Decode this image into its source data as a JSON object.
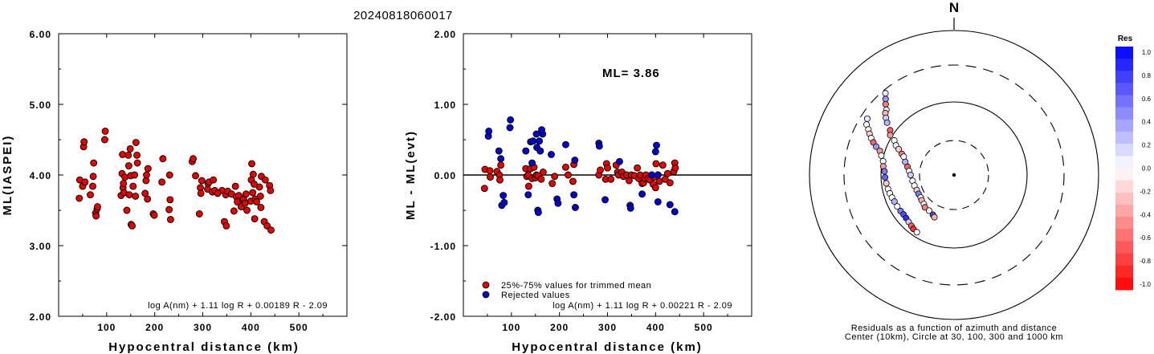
{
  "title": "20240818060017",
  "chart_data": [
    {
      "type": "scatter",
      "ylabel": "ML(IASPEI)",
      "xlabel": "Hypocentral distance (km)",
      "xlim": [
        0,
        600
      ],
      "ylim": [
        2.0,
        6.0
      ],
      "xticks": [
        "100",
        "200",
        "300",
        "400",
        "500"
      ],
      "yticks": [
        "2.00",
        "3.00",
        "4.00",
        "5.00",
        "6.00"
      ],
      "formula": "log A(nm) + 1.11 log R + 0.00189 R - 2.09",
      "color": "#e00000",
      "points": [
        [
          43,
          3.67
        ],
        [
          44,
          3.93
        ],
        [
          50,
          3.84
        ],
        [
          52,
          4.4
        ],
        [
          53,
          4.47
        ],
        [
          55,
          3.9
        ],
        [
          66,
          3.72
        ],
        [
          71,
          3.84
        ],
        [
          72,
          3.98
        ],
        [
          73,
          4.17
        ],
        [
          77,
          3.46
        ],
        [
          78,
          3.42
        ],
        [
          80,
          3.52
        ],
        [
          81,
          3.55
        ],
        [
          96,
          4.5
        ],
        [
          97,
          4.62
        ],
        [
          130,
          3.71
        ],
        [
          132,
          4.02
        ],
        [
          133,
          4.29
        ],
        [
          134,
          3.82
        ],
        [
          135,
          3.88
        ],
        [
          136,
          3.75
        ],
        [
          138,
          3.97
        ],
        [
          142,
          3.5
        ],
        [
          145,
          4.28
        ],
        [
          146,
          4.13
        ],
        [
          147,
          3.72
        ],
        [
          149,
          4.37
        ],
        [
          150,
          3.99
        ],
        [
          151,
          3.3
        ],
        [
          153,
          3.28
        ],
        [
          155,
          3.84
        ],
        [
          158,
          4.0
        ],
        [
          160,
          3.7
        ],
        [
          161,
          4.46
        ],
        [
          163,
          4.28
        ],
        [
          164,
          4.17
        ],
        [
          180,
          3.74
        ],
        [
          182,
          3.92
        ],
        [
          183,
          4.0
        ],
        [
          185,
          3.66
        ],
        [
          186,
          4.09
        ],
        [
          197,
          3.45
        ],
        [
          199,
          3.43
        ],
        [
          215,
          3.9
        ],
        [
          217,
          4.23
        ],
        [
          230,
          3.51
        ],
        [
          231,
          4.0
        ],
        [
          232,
          3.65
        ],
        [
          233,
          3.37
        ],
        [
          278,
          4.19
        ],
        [
          280,
          4.23
        ],
        [
          285,
          3.99
        ],
        [
          293,
          3.45
        ],
        [
          295,
          3.82
        ],
        [
          296,
          3.74
        ],
        [
          298,
          3.92
        ],
        [
          310,
          3.8
        ],
        [
          311,
          3.88
        ],
        [
          313,
          3.9
        ],
        [
          320,
          3.76
        ],
        [
          322,
          3.93
        ],
        [
          325,
          3.78
        ],
        [
          340,
          3.78
        ],
        [
          345,
          3.34
        ],
        [
          348,
          3.72
        ],
        [
          349,
          3.28
        ],
        [
          352,
          3.77
        ],
        [
          360,
          3.73
        ],
        [
          365,
          3.49
        ],
        [
          368,
          3.84
        ],
        [
          370,
          3.69
        ],
        [
          372,
          3.62
        ],
        [
          375,
          3.71
        ],
        [
          380,
          3.55
        ],
        [
          383,
          3.65
        ],
        [
          385,
          3.66
        ],
        [
          388,
          3.6
        ],
        [
          390,
          3.73
        ],
        [
          392,
          3.5
        ],
        [
          400,
          3.63
        ],
        [
          401,
          3.93
        ],
        [
          402,
          4.16
        ],
        [
          404,
          3.75
        ],
        [
          405,
          4.01
        ],
        [
          408,
          3.38
        ],
        [
          418,
          3.83
        ],
        [
          420,
          3.7
        ],
        [
          421,
          3.54
        ],
        [
          422,
          3.98
        ],
        [
          428,
          3.34
        ],
        [
          430,
          3.93
        ],
        [
          434,
          3.28
        ],
        [
          439,
          3.85
        ],
        [
          441,
          3.78
        ],
        [
          442,
          3.22
        ],
        [
          407,
          3.87
        ],
        [
          409,
          3.66
        ],
        [
          331,
          3.74
        ],
        [
          412,
          3.62
        ]
      ]
    },
    {
      "type": "scatter",
      "ylabel": "ML - ML(evt)",
      "xlabel": "Hypocentral distance (km)",
      "xlim": [
        0,
        600
      ],
      "ylim": [
        -2.0,
        2.0
      ],
      "xticks": [
        "100",
        "200",
        "300",
        "400",
        "500"
      ],
      "yticks": [
        "-2.00",
        "-1.00",
        "0.00",
        "1.00",
        "2.00"
      ],
      "annotation": "ML= 3.86",
      "formula": "log A(nm) + 1.11 log R + 0.00221 R - 2.09",
      "legend": [
        {
          "label": "25%-75% values for trimmed mean",
          "color": "#e00000"
        },
        {
          "label": "Rejected values",
          "color": "#0000c8"
        }
      ],
      "series": [
        {
          "name": "25%-75% values for trimmed mean",
          "color": "#e00000",
          "points": [
            [
              44,
              -0.19
            ],
            [
              45,
              0.08
            ],
            [
              55,
              0.06
            ],
            [
              56,
              -0.03
            ],
            [
              70,
              0.05
            ],
            [
              75,
              0.0
            ],
            [
              76,
              -0.07
            ],
            [
              78,
              0.14
            ],
            [
              130,
              0.09
            ],
            [
              132,
              -0.02
            ],
            [
              135,
              0.0
            ],
            [
              136,
              -0.16
            ],
            [
              140,
              0.09
            ],
            [
              143,
              -0.05
            ],
            [
              147,
              0.11
            ],
            [
              150,
              -0.04
            ],
            [
              152,
              0.0
            ],
            [
              155,
              -0.01
            ],
            [
              162,
              -0.06
            ],
            [
              166,
              0.04
            ],
            [
              185,
              -0.12
            ],
            [
              190,
              -0.02
            ],
            [
              213,
              0.11
            ],
            [
              218,
              0.0
            ],
            [
              228,
              -0.09
            ],
            [
              230,
              0.15
            ],
            [
              282,
              0.0
            ],
            [
              285,
              0.07
            ],
            [
              296,
              -0.06
            ],
            [
              298,
              0.16
            ],
            [
              300,
              0.1
            ],
            [
              307,
              -0.06
            ],
            [
              318,
              0.14
            ],
            [
              321,
              0.04
            ],
            [
              323,
              0.0
            ],
            [
              330,
              0.04
            ],
            [
              333,
              -0.02
            ],
            [
              340,
              0.0
            ],
            [
              345,
              -0.08
            ],
            [
              350,
              0.0
            ],
            [
              356,
              -0.01
            ],
            [
              362,
              0.1
            ],
            [
              365,
              -0.05
            ],
            [
              368,
              0.0
            ],
            [
              372,
              -0.12
            ],
            [
              375,
              -0.11
            ],
            [
              378,
              -0.05
            ],
            [
              380,
              0.0
            ],
            [
              385,
              -0.05
            ],
            [
              388,
              -0.07
            ],
            [
              392,
              0.0
            ],
            [
              395,
              -0.13
            ],
            [
              397,
              -0.03
            ],
            [
              400,
              -0.18
            ],
            [
              401,
              0.16
            ],
            [
              405,
              0.0
            ],
            [
              408,
              -0.09
            ],
            [
              415,
              0.14
            ],
            [
              420,
              -0.06
            ],
            [
              425,
              0.02
            ],
            [
              430,
              -0.11
            ],
            [
              438,
              0.05
            ],
            [
              440,
              0.17
            ],
            [
              441,
              0.1
            ]
          ]
        },
        {
          "name": "Rejected values",
          "color": "#0000c8",
          "points": [
            [
              52,
              0.55
            ],
            [
              53,
              0.62
            ],
            [
              74,
              0.34
            ],
            [
              78,
              0.23
            ],
            [
              80,
              -0.43
            ],
            [
              83,
              -0.29
            ],
            [
              85,
              -0.39
            ],
            [
              97,
              0.67
            ],
            [
              98,
              0.78
            ],
            [
              130,
              0.34
            ],
            [
              135,
              -0.28
            ],
            [
              140,
              0.47
            ],
            [
              143,
              0.17
            ],
            [
              145,
              0.48
            ],
            [
              152,
              0.58
            ],
            [
              153,
              0.39
            ],
            [
              155,
              -0.5
            ],
            [
              156,
              -0.53
            ],
            [
              158,
              0.48
            ],
            [
              160,
              0.34
            ],
            [
              165,
              0.58
            ],
            [
              163,
              0.64
            ],
            [
              183,
              0.29
            ],
            [
              195,
              -0.34
            ],
            [
              197,
              -0.4
            ],
            [
              213,
              0.43
            ],
            [
              230,
              -0.28
            ],
            [
              232,
              0.21
            ],
            [
              233,
              -0.46
            ],
            [
              282,
              0.45
            ],
            [
              283,
              0.41
            ],
            [
              295,
              -0.35
            ],
            [
              325,
              0.19
            ],
            [
              347,
              -0.43
            ],
            [
              348,
              -0.47
            ],
            [
              372,
              -0.27
            ],
            [
              400,
              0.33
            ],
            [
              402,
              0.42
            ],
            [
              405,
              -0.38
            ],
            [
              430,
              -0.42
            ],
            [
              440,
              -0.52
            ],
            [
              405,
              0.0
            ],
            [
              392,
              0.0
            ]
          ]
        }
      ]
    },
    {
      "type": "scatter",
      "subtype": "polar",
      "north_label": "N",
      "caption": [
        "Residuals as a function of azimuth and distance",
        "Center (10km), Circle at 30, 100, 300 and 1000 km"
      ],
      "colorbar": {
        "title": "Res",
        "ticks": [
          "1.0",
          "0.8",
          "0.6",
          "0.4",
          "0.2",
          "0.0",
          "-0.2",
          "-0.4",
          "-0.6",
          "-0.8",
          "-1.0"
        ],
        "range": [
          -1.0,
          1.0
        ]
      },
      "points": [
        [
          320,
          300,
          0.1
        ],
        [
          318,
          260,
          0.4
        ],
        [
          316,
          230,
          -0.5
        ],
        [
          314,
          200,
          0.1
        ],
        [
          312,
          190,
          -0.3
        ],
        [
          310,
          170,
          0.2
        ],
        [
          308,
          150,
          0.3
        ],
        [
          305,
          120,
          -0.6
        ],
        [
          302,
          110,
          -0.4
        ],
        [
          300,
          90,
          0.0
        ],
        [
          297,
          80,
          0.05
        ],
        [
          295,
          70,
          -0.2
        ],
        [
          292,
          60,
          -0.5
        ],
        [
          290,
          55,
          0.0
        ],
        [
          285,
          50,
          0.3
        ],
        [
          280,
          45,
          -0.6
        ],
        [
          275,
          42,
          0.0
        ],
        [
          270,
          40,
          0.2
        ],
        [
          262,
          38,
          0.0
        ],
        [
          255,
          37,
          0.0
        ],
        [
          248,
          36,
          -0.2
        ],
        [
          242,
          36,
          0.5
        ],
        [
          236,
          36,
          0.0
        ],
        [
          232,
          37,
          -0.3
        ],
        [
          226,
          38,
          0.0
        ],
        [
          222,
          40,
          -0.5
        ],
        [
          215,
          40,
          0.0
        ],
        [
          208,
          42,
          0.7
        ],
        [
          205,
          44,
          -0.3
        ],
        [
          303,
          270,
          0.1
        ],
        [
          300,
          250,
          0.0
        ],
        [
          298,
          220,
          0.0
        ],
        [
          296,
          200,
          -0.2
        ],
        [
          294,
          180,
          0.0
        ],
        [
          292,
          160,
          -0.6
        ],
        [
          290,
          140,
          0.4
        ],
        [
          288,
          120,
          -0.4
        ],
        [
          285,
          110,
          0.0
        ],
        [
          281,
          100,
          0.0
        ],
        [
          277,
          97,
          -0.4
        ],
        [
          273,
          92,
          0.5
        ],
        [
          268,
          90,
          0.6
        ],
        [
          263,
          88,
          -0.2
        ],
        [
          258,
          86,
          0.0
        ],
        [
          254,
          84,
          0.0
        ],
        [
          250,
          82,
          0.0
        ],
        [
          246,
          80,
          0.3
        ],
        [
          241,
          79,
          0.0
        ],
        [
          236,
          78,
          0.5
        ],
        [
          232,
          77,
          0.7
        ],
        [
          228,
          78,
          0.8
        ],
        [
          224,
          80,
          0.2
        ],
        [
          220,
          83,
          -0.6
        ],
        [
          217,
          86,
          -0.8
        ],
        [
          213,
          88,
          0.0
        ]
      ]
    }
  ]
}
